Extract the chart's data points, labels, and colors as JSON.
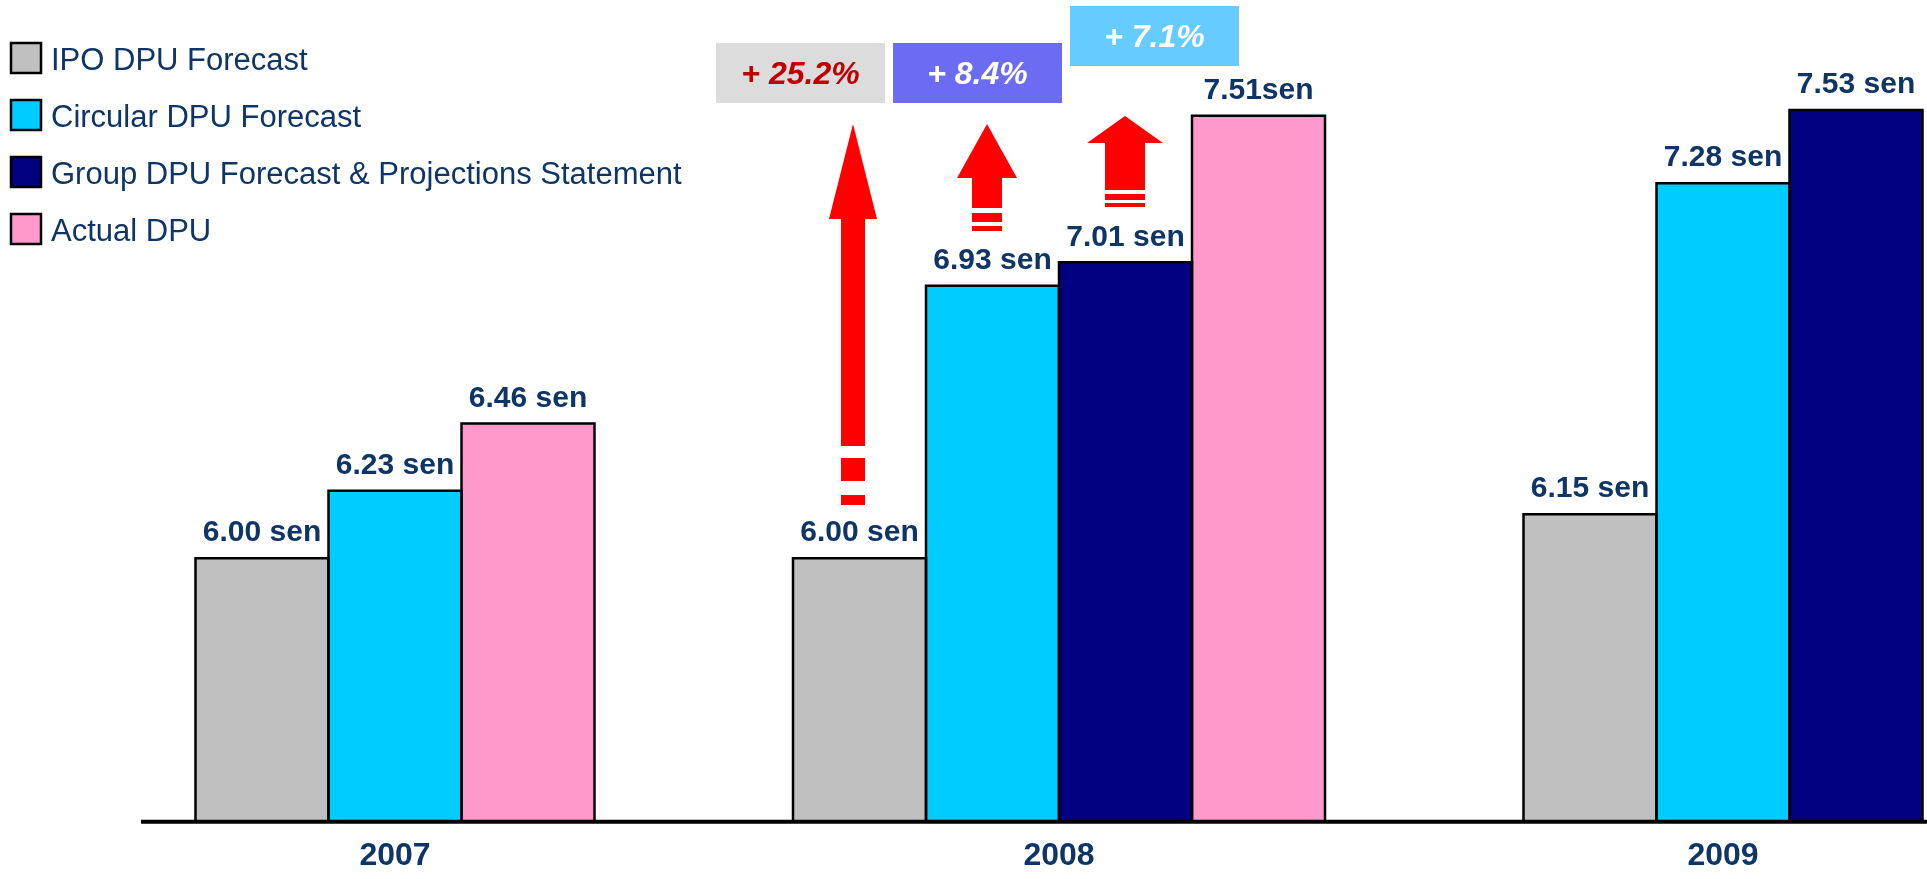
{
  "chart_data": {
    "type": "bar",
    "categories": [
      "2007",
      "2008",
      "2009"
    ],
    "series": [
      {
        "name": "IPO DPU Forecast",
        "color": "#c0c0c0",
        "values": [
          6.0,
          6.0,
          6.15
        ],
        "value_labels": [
          "6.00 sen",
          "6.00 sen",
          "6.15 sen"
        ]
      },
      {
        "name": "Circular DPU Forecast",
        "color": "#00ccff",
        "values": [
          6.23,
          6.93,
          7.28
        ],
        "value_labels": [
          "6.23 sen",
          "6.93 sen",
          "7.28 sen"
        ]
      },
      {
        "name": "Group DPU Forecast & Projections Statement",
        "color": "#000080",
        "values": [
          null,
          7.01,
          7.53
        ],
        "value_labels": [
          null,
          "7.01 sen",
          "7.53 sen"
        ]
      },
      {
        "name": "Actual DPU",
        "color": "#ff99cc",
        "values": [
          6.46,
          7.51,
          null
        ],
        "value_labels": [
          "6.46 sen",
          "7.51sen",
          null
        ]
      }
    ],
    "ylim": [
      5.1,
      7.53
    ],
    "tick_labels": "x",
    "legend": "top left",
    "annotations": [
      "+ 25.2%",
      "+ 8.4%",
      "+ 7.1%"
    ]
  }
}
